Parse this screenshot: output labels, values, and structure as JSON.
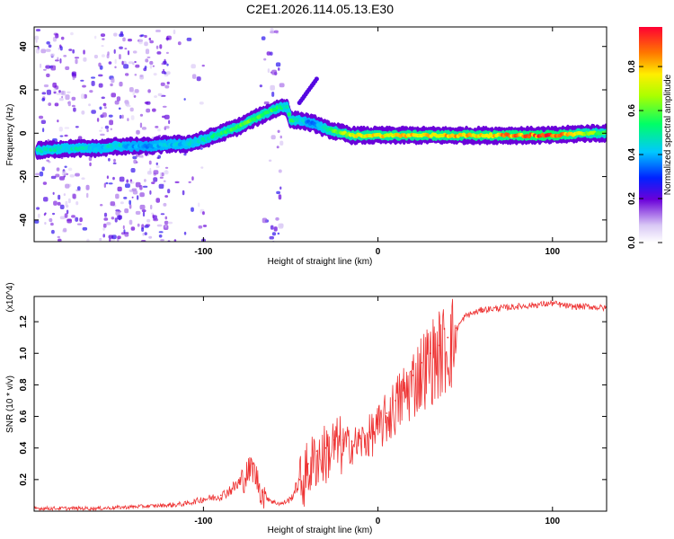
{
  "title": "C2E1.2026.114.05.13.E30",
  "chart_data": [
    {
      "type": "heatmap",
      "xlabel": "Height of straight line (km)",
      "ylabel": "Frequency (Hz)",
      "xlim": [
        -197,
        131
      ],
      "ylim": [
        -50,
        49
      ],
      "xticks": [
        -100,
        0,
        100
      ],
      "yticks": [
        -40,
        -20,
        0,
        20,
        40
      ],
      "colorbar": {
        "label": "Normalized spectral amplitude",
        "range": [
          0.0,
          0.98
        ],
        "ticks": [
          0.0,
          0.2,
          0.4,
          0.6,
          0.8
        ],
        "tick_labels": [
          "0.0",
          "0.2",
          "0.4",
          "0.6",
          "0.8"
        ]
      },
      "ridge": {
        "x": [
          -195,
          -180,
          -160,
          -150,
          -140,
          -130,
          -120,
          -110,
          -100,
          -90,
          -80,
          -70,
          -62,
          -56,
          -52,
          -50,
          -45,
          -40,
          -35,
          -30,
          -25,
          -20,
          -15,
          -10,
          -5,
          0,
          20,
          40,
          60,
          80,
          100,
          120,
          131
        ],
        "y": [
          -8,
          -7,
          -7,
          -6,
          -6,
          -6,
          -5,
          -5,
          -3,
          0,
          3,
          7,
          10,
          12,
          12,
          6,
          6,
          5,
          4,
          2,
          1,
          0,
          -1,
          -1,
          -1,
          -1,
          -1,
          -1,
          -1,
          -1,
          -1,
          0,
          0
        ],
        "amplitude": [
          0.5,
          0.5,
          0.45,
          0.5,
          0.4,
          0.4,
          0.45,
          0.45,
          0.5,
          0.55,
          0.6,
          0.65,
          0.6,
          0.55,
          0.5,
          0.6,
          0.5,
          0.4,
          0.4,
          0.55,
          0.65,
          0.7,
          0.75,
          0.8,
          0.8,
          0.8,
          0.85,
          0.85,
          0.85,
          0.9,
          0.98,
          0.7,
          0.6
        ]
      }
    },
    {
      "type": "line",
      "xlabel": "Height of straight line (km)",
      "ylabel": "SNR (10 * v/v)",
      "y_multiplier": "(x10^4)",
      "xlim": [
        -197,
        131
      ],
      "ylim": [
        0.0,
        1.36
      ],
      "xticks": [
        -100,
        0,
        100
      ],
      "yticks": [
        0.2,
        0.4,
        0.6,
        0.8,
        1.0,
        1.2
      ],
      "series": [
        {
          "name": "SNR",
          "color": "#ee3333",
          "x": [
            -197,
            -160,
            -140,
            -120,
            -110,
            -100,
            -90,
            -80,
            -72,
            -66,
            -60,
            -55,
            -50,
            -45,
            -40,
            -35,
            -30,
            -25,
            -20,
            -15,
            -10,
            -5,
            0,
            5,
            10,
            15,
            20,
            25,
            30,
            35,
            40,
            45,
            50,
            60,
            70,
            80,
            90,
            100,
            110,
            120,
            131
          ],
          "y": [
            0.02,
            0.02,
            0.03,
            0.04,
            0.05,
            0.08,
            0.1,
            0.18,
            0.3,
            0.12,
            0.06,
            0.05,
            0.08,
            0.2,
            0.3,
            0.38,
            0.4,
            0.45,
            0.45,
            0.44,
            0.46,
            0.5,
            0.55,
            0.62,
            0.7,
            0.78,
            0.86,
            0.94,
            1.0,
            1.05,
            1.1,
            1.16,
            1.24,
            1.28,
            1.29,
            1.3,
            1.31,
            1.32,
            1.3,
            1.3,
            1.29
          ]
        }
      ]
    }
  ]
}
